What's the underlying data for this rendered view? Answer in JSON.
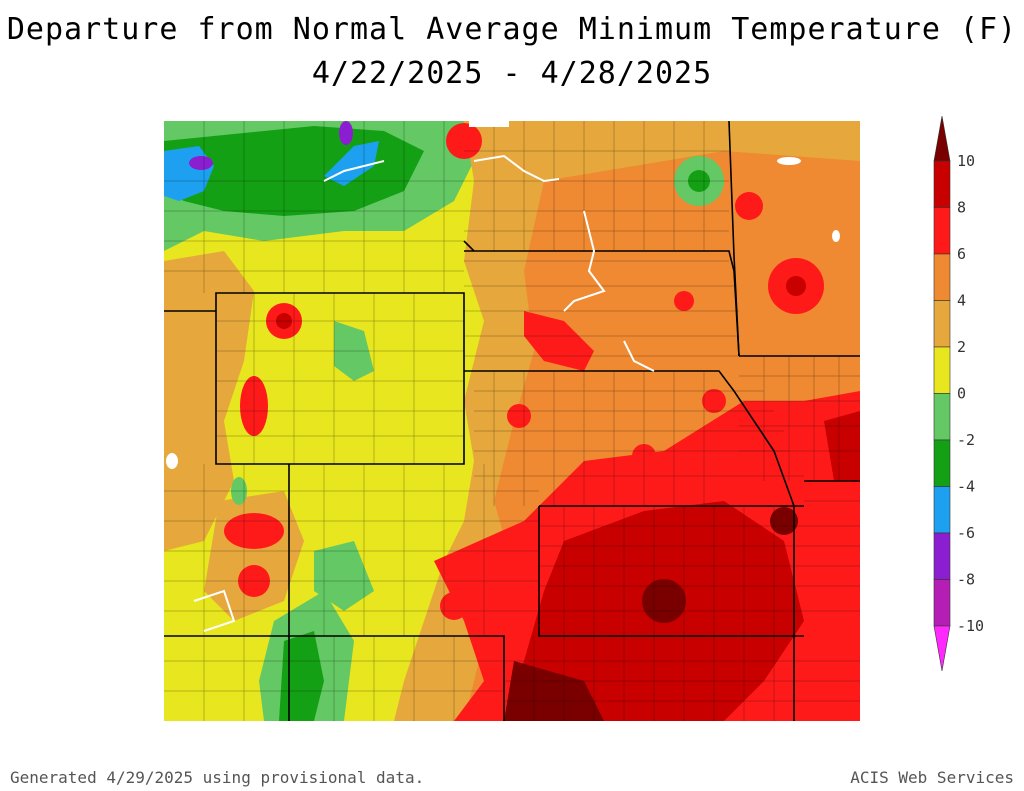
{
  "title": "Departure from Normal Average Minimum Temperature (F)",
  "subtitle": "4/22/2025 - 4/28/2025",
  "footer_left": "Generated 4/29/2025 using provisional data.",
  "footer_right": "ACIS Web Services",
  "legend": {
    "ticks": [
      "10",
      "8",
      "6",
      "4",
      "2",
      "0",
      "-2",
      "-4",
      "-6",
      "-8",
      "-10"
    ],
    "bins": [
      {
        "range": ">10",
        "color": "#7a0000"
      },
      {
        "range": "8 to 10",
        "color": "#c80000"
      },
      {
        "range": "6 to 8",
        "color": "#ff1a1a"
      },
      {
        "range": "4 to 6",
        "color": "#f08a32"
      },
      {
        "range": "2 to 4",
        "color": "#e6a83c"
      },
      {
        "range": "0 to 2",
        "color": "#e8e61e"
      },
      {
        "range": "-2 to 0",
        "color": "#64c864"
      },
      {
        "range": "-4 to -2",
        "color": "#14a014"
      },
      {
        "range": "-6 to -4",
        "color": "#1ea0f0"
      },
      {
        "range": "-8 to -6",
        "color": "#8c1ed2"
      },
      {
        "range": "-10 to -8",
        "color": "#b41eb4"
      },
      {
        "range": "<-10",
        "color": "#ff28ff"
      }
    ]
  }
}
